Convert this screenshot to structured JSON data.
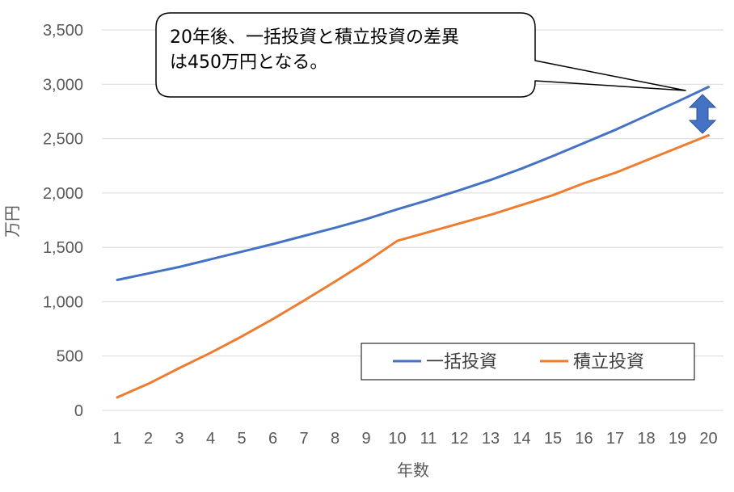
{
  "chart_data": {
    "type": "line",
    "xlabel": "年数",
    "ylabel": "万円",
    "categories": [
      "1",
      "2",
      "3",
      "4",
      "5",
      "6",
      "7",
      "8",
      "9",
      "10",
      "11",
      "12",
      "13",
      "14",
      "15",
      "16",
      "17",
      "18",
      "19",
      "20"
    ],
    "ylim": [
      0,
      3500
    ],
    "yticks": [
      "0",
      "500",
      "1,000",
      "1,500",
      "2,000",
      "2,500",
      "3,000",
      "3,500"
    ],
    "ytick_values": [
      0,
      500,
      1000,
      1500,
      2000,
      2500,
      3000,
      3500
    ],
    "grid": "horizontal",
    "legend_position": "bottom-right",
    "series": [
      {
        "name": "一括投資",
        "color": "#4472C4",
        "values": [
          1200,
          1260,
          1320,
          1390,
          1460,
          1530,
          1605,
          1680,
          1760,
          1850,
          1935,
          2025,
          2120,
          2225,
          2340,
          2460,
          2580,
          2710,
          2840,
          2975
        ]
      },
      {
        "name": "積立投資",
        "color": "#ED7D31",
        "values": [
          120,
          245,
          390,
          530,
          680,
          840,
          1010,
          1185,
          1365,
          1560,
          1640,
          1720,
          1800,
          1890,
          1980,
          2090,
          2185,
          2300,
          2415,
          2530
        ]
      }
    ],
    "annotation": {
      "lines": [
        "20年後、一括投資と積立投資の差異",
        "は450万円となる。"
      ],
      "arrow_color": "#4472C4"
    }
  }
}
